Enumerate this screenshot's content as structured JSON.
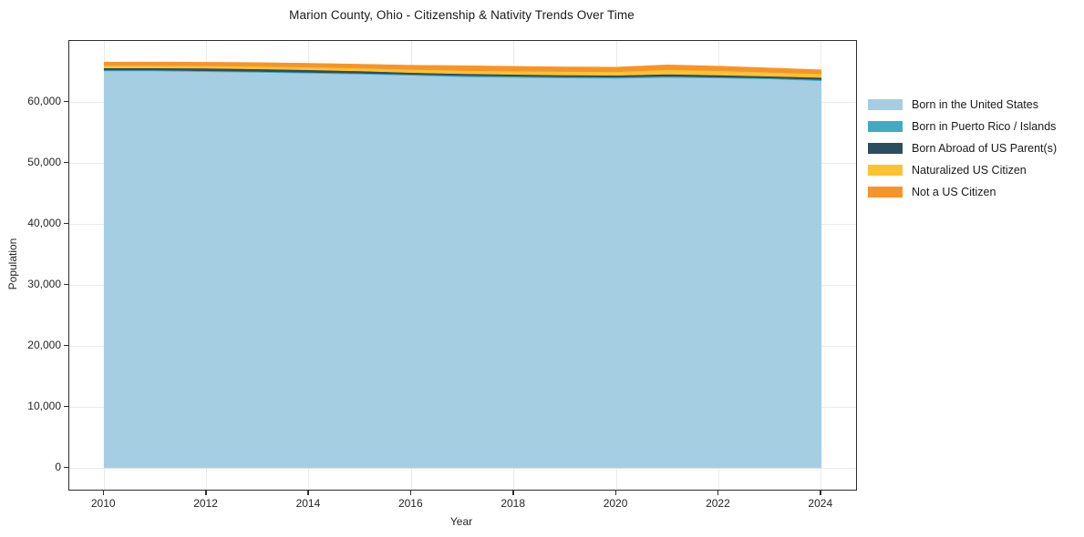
{
  "chart_data": {
    "type": "area",
    "stacked": true,
    "title": "Marion County, Ohio - Citizenship & Nativity Trends Over Time",
    "xlabel": "Year",
    "ylabel": "Population",
    "grid": true,
    "legend_position": "center right outside",
    "x": [
      2010,
      2011,
      2012,
      2013,
      2014,
      2015,
      2016,
      2017,
      2018,
      2019,
      2020,
      2021,
      2022,
      2023,
      2024
    ],
    "xlim": [
      2009.32,
      2024.68
    ],
    "ylim": [
      -3580,
      70030
    ],
    "x_ticks": [
      2010,
      2012,
      2014,
      2016,
      2018,
      2020,
      2022,
      2024
    ],
    "x_tick_labels": [
      "2010",
      "2012",
      "2014",
      "2016",
      "2018",
      "2020",
      "2022",
      "2024"
    ],
    "y_ticks": [
      0,
      10000,
      20000,
      30000,
      40000,
      50000,
      60000
    ],
    "y_tick_labels": [
      "0",
      "10,000",
      "20,000",
      "30,000",
      "40,000",
      "50,000",
      "60,000"
    ],
    "series": [
      {
        "name": "Born in the United States",
        "color": "#a5cee3",
        "values": [
          65100,
          65100,
          65000,
          64900,
          64750,
          64600,
          64400,
          64150,
          64050,
          63950,
          63900,
          64050,
          63950,
          63800,
          63500
        ]
      },
      {
        "name": "Born in Puerto Rico / Islands",
        "color": "#41a9c4",
        "values": [
          150,
          150,
          150,
          150,
          150,
          150,
          150,
          200,
          200,
          200,
          200,
          200,
          150,
          150,
          200
        ]
      },
      {
        "name": "Born Abroad of US Parent(s)",
        "color": "#2b4d62",
        "values": [
          350,
          350,
          400,
          400,
          400,
          350,
          300,
          300,
          300,
          300,
          300,
          350,
          350,
          300,
          350
        ]
      },
      {
        "name": "Naturalized US Citizen",
        "color": "#fcc330",
        "values": [
          400,
          400,
          400,
          420,
          450,
          480,
          500,
          520,
          540,
          560,
          580,
          700,
          700,
          650,
          600
        ]
      },
      {
        "name": "Not a US Citizen",
        "color": "#f79428",
        "values": [
          550,
          570,
          580,
          600,
          620,
          650,
          700,
          800,
          780,
          760,
          750,
          800,
          750,
          700,
          650
        ]
      }
    ]
  },
  "colors": {
    "plot_border": "#2e2e2e",
    "gridline": "#ebebeb",
    "text": "#262626"
  }
}
